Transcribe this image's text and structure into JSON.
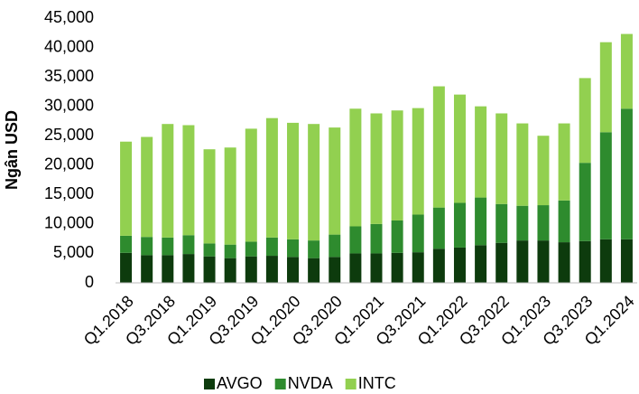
{
  "chart_data": {
    "type": "stacked_bar",
    "ylabel": "Ngân USD",
    "categories": [
      "Q1.2018",
      null,
      "Q3.2018",
      null,
      "Q1.2019",
      null,
      "Q3.2019",
      null,
      "Q1.2020",
      null,
      "Q3.2020",
      null,
      "Q1.2021",
      null,
      "Q3.2021",
      null,
      "Q1.2022",
      null,
      "Q3.2022",
      null,
      "Q1.2023",
      null,
      "Q3.2023",
      null,
      "Q1.2024"
    ],
    "series": [
      {
        "name": "AVGO",
        "color": "#0d3b0d",
        "values": [
          5100,
          4700,
          4700,
          4900,
          4500,
          4200,
          4500,
          4600,
          4400,
          4200,
          4400,
          5000,
          5000,
          5100,
          5200,
          5800,
          6000,
          6400,
          6800,
          7200,
          7200,
          6900,
          7100,
          7400,
          7400
        ]
      },
      {
        "name": "NVDA",
        "color": "#2e8b2e",
        "values": [
          2900,
          3100,
          3000,
          3200,
          2200,
          2300,
          2500,
          3100,
          3000,
          3000,
          3800,
          4600,
          5000,
          5500,
          6400,
          7000,
          7600,
          8100,
          6600,
          5900,
          6000,
          7100,
          13300,
          18200,
          22200
        ]
      },
      {
        "name": "INTC",
        "color": "#92d050",
        "values": [
          16000,
          17000,
          19300,
          18700,
          16000,
          16500,
          19200,
          20300,
          19800,
          19800,
          18200,
          20000,
          18800,
          18700,
          18100,
          20600,
          18400,
          15500,
          15400,
          14000,
          11800,
          13100,
          14400,
          15300,
          12700
        ]
      }
    ],
    "ylim": [
      0,
      45000
    ],
    "yticks": [
      0,
      {
        "value": 5000,
        "label": "5,000"
      },
      {
        "value": 10000,
        "label": "10,000"
      },
      {
        "value": 15000,
        "label": "15,000"
      },
      {
        "value": 20000,
        "label": "20,000"
      },
      {
        "value": 25000,
        "label": "25,000"
      },
      {
        "value": 30000,
        "label": "30,000"
      },
      {
        "value": 35000,
        "label": "35,000"
      },
      {
        "value": 40000,
        "label": "40,000"
      },
      {
        "value": 45000,
        "label": "45,000"
      }
    ],
    "legend": "bottom"
  }
}
